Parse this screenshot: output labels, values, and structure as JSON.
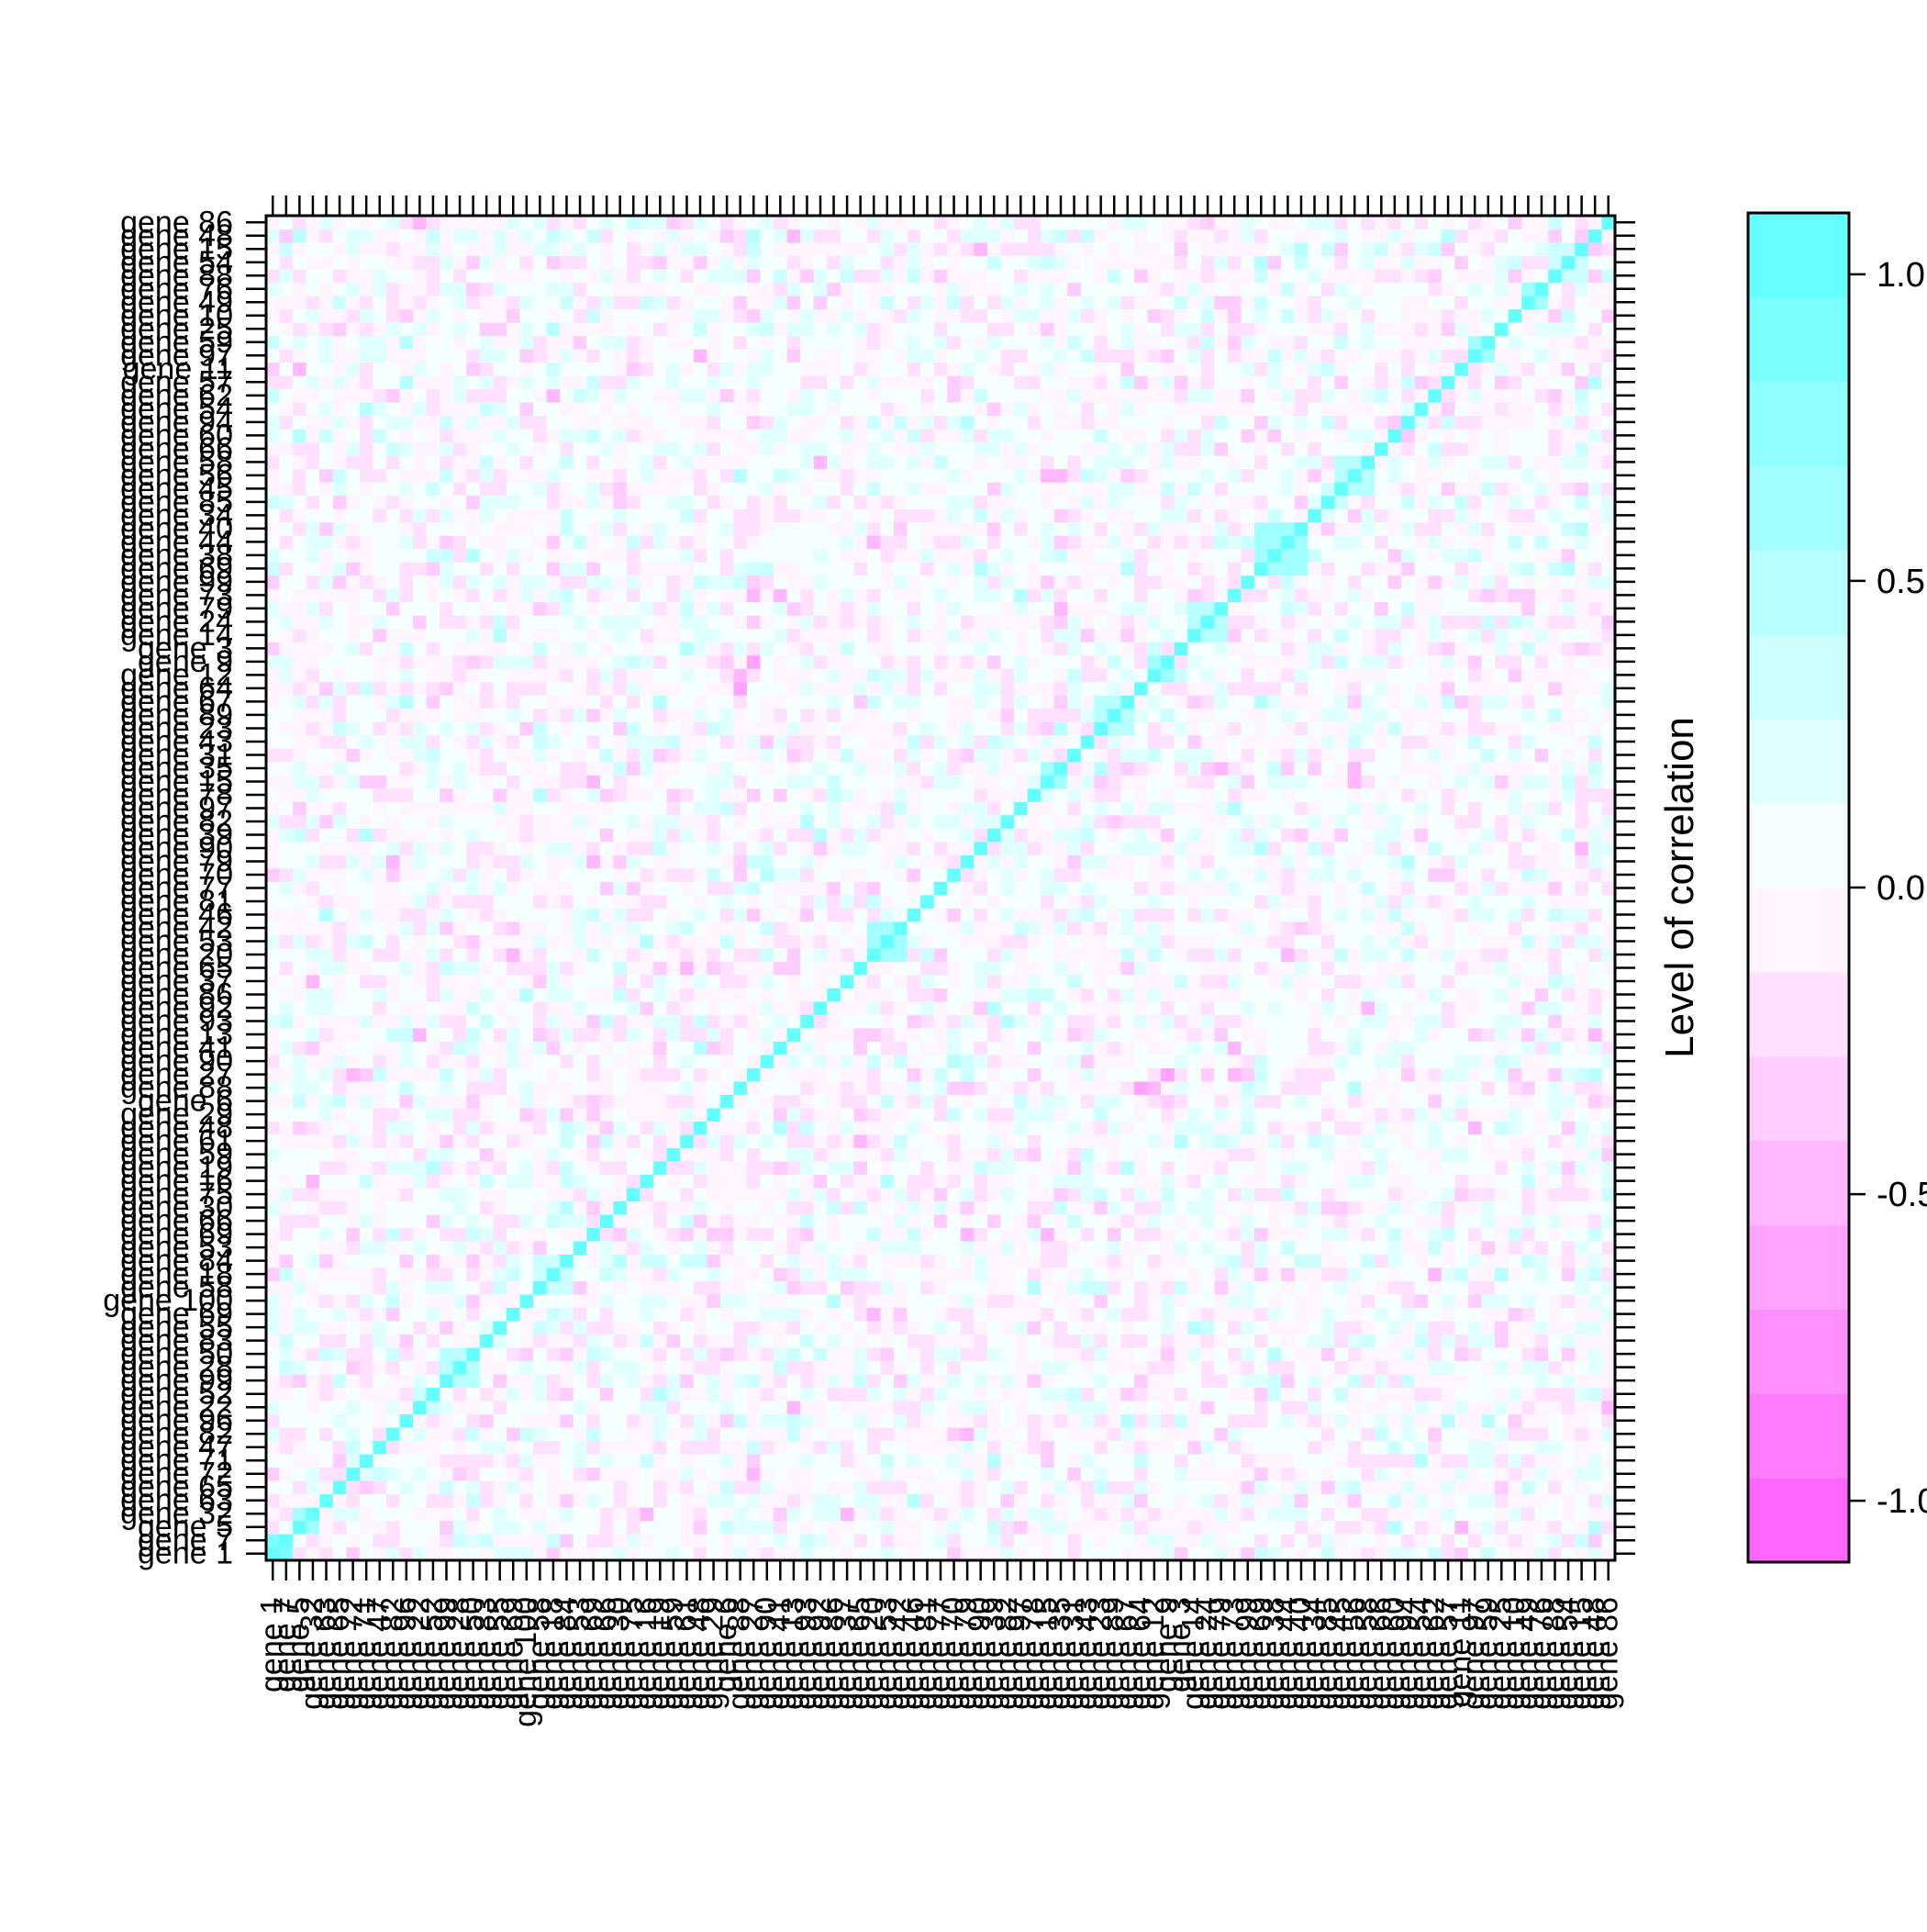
{
  "chart_data": {
    "type": "heatmap",
    "title": "",
    "xlabel": "",
    "ylabel": "",
    "colorbar": {
      "title": "Level of correlation",
      "range": [
        -1.1,
        1.1
      ],
      "ticks": [
        1.0,
        0.5,
        0.0,
        -0.5,
        -1.0
      ],
      "tick_labels": [
        "1.0",
        "0.5",
        "0.0",
        "-0.5",
        "-1.0"
      ],
      "levels": 16
    },
    "colors": {
      "positive": "#5cffff",
      "negative": "#ff5cff",
      "zero": "#ffffff",
      "frame": "#000000"
    },
    "order": [
      1,
      7,
      5,
      32,
      63,
      65,
      72,
      71,
      47,
      82,
      96,
      22,
      52,
      99,
      28,
      50,
      83,
      55,
      69,
      100,
      58,
      18,
      84,
      53,
      69,
      66,
      30,
      75,
      16,
      19,
      59,
      61,
      48,
      29,
      6,
      88,
      27,
      90,
      41,
      13,
      93,
      92,
      86,
      37,
      65,
      20,
      53,
      42,
      46,
      81,
      77,
      70,
      79,
      90,
      39,
      82,
      97,
      78,
      15,
      35,
      31,
      43,
      23,
      89,
      67,
      64,
      12,
      9,
      3,
      14,
      24,
      79,
      73,
      99,
      69,
      38,
      44,
      40,
      34,
      85,
      45,
      56,
      58,
      66,
      60,
      94,
      54,
      62,
      57,
      11,
      97,
      59,
      25,
      10,
      49,
      76,
      88,
      54,
      15,
      48,
      86
    ],
    "labels": [
      "gene 1",
      "gene 7",
      "gene 5",
      "gene 32",
      "gene 63",
      "gene 65",
      "gene 72",
      "gene 71",
      "gene 47",
      "gene 82",
      "gene 96",
      "gene 22",
      "gene 52",
      "gene 99",
      "gene 28",
      "gene 50",
      "gene 83",
      "gene 55",
      "gene 69",
      "gene 100",
      "gene 58",
      "gene 18",
      "gene 84",
      "gene 53",
      "gene 69",
      "gene 66",
      "gene 30",
      "gene 75",
      "gene 16",
      "gene 19",
      "gene 59",
      "gene 61",
      "gene 48",
      "gene 29",
      "gene 6",
      "gene 88",
      "gene 27",
      "gene 90",
      "gene 41",
      "gene 13",
      "gene 93",
      "gene 92",
      "gene 86",
      "gene 37",
      "gene 65",
      "gene 20",
      "gene 53",
      "gene 42",
      "gene 46",
      "gene 81",
      "gene 77",
      "gene 70",
      "gene 79",
      "gene 90",
      "gene 39",
      "gene 82",
      "gene 97",
      "gene 78",
      "gene 15",
      "gene 35",
      "gene 31",
      "gene 43",
      "gene 23",
      "gene 89",
      "gene 67",
      "gene 64",
      "gene 12",
      "gene 9",
      "gene 3",
      "gene 14",
      "gene 24",
      "gene 79",
      "gene 73",
      "gene 99",
      "gene 69",
      "gene 38",
      "gene 44",
      "gene 40",
      "gene 34",
      "gene 85",
      "gene 45",
      "gene 56",
      "gene 58",
      "gene 66",
      "gene 60",
      "gene 94",
      "gene 54",
      "gene 62",
      "gene 57",
      "gene 11",
      "gene 97",
      "gene 59",
      "gene 25",
      "gene 10",
      "gene 49",
      "gene 76",
      "gene 88",
      "gene 54",
      "gene 15",
      "gene 48",
      "gene 86"
    ],
    "n": 101,
    "blocks": [
      {
        "start": 0,
        "size": 2,
        "value": 0.85
      },
      {
        "start": 2,
        "size": 2,
        "value": 0.55
      },
      {
        "start": 13,
        "size": 3,
        "value": 0.45
      },
      {
        "start": 20,
        "size": 3,
        "value": 0.4
      },
      {
        "start": 45,
        "size": 3,
        "value": 0.6
      },
      {
        "start": 58,
        "size": 2,
        "value": 0.6
      },
      {
        "start": 62,
        "size": 3,
        "value": 0.5
      },
      {
        "start": 66,
        "size": 2,
        "value": 0.55
      },
      {
        "start": 69,
        "size": 3,
        "value": 0.5
      },
      {
        "start": 74,
        "size": 4,
        "value": 0.6
      },
      {
        "start": 80,
        "size": 3,
        "value": 0.45
      },
      {
        "start": 90,
        "size": 2,
        "value": 0.6
      },
      {
        "start": 94,
        "size": 2,
        "value": 0.55
      },
      {
        "start": 96,
        "size": 3,
        "value": 0.4
      }
    ],
    "noise": {
      "sd": 0.16,
      "seed": 20240611
    }
  }
}
